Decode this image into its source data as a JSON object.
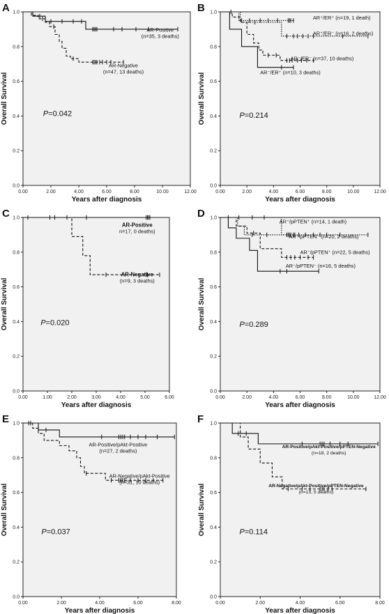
{
  "chart_data": [
    {
      "panel": "A",
      "type": "line",
      "xlabel": "Years after diagnosis",
      "ylabel": "Overall Survival",
      "xlim": [
        0,
        12
      ],
      "ylim": [
        0,
        1
      ],
      "xticks": [
        "0.00",
        "2.00",
        "4.00",
        "6.00",
        "8.00",
        "10.00",
        "12.00"
      ],
      "yticks": [
        "0.0",
        "0.2",
        "0.4",
        "0.6",
        "0.8",
        "1.0"
      ],
      "p_value": "P=0.042",
      "series": [
        {
          "name": "AR-Positive",
          "count": "(n=35, 3 deaths)",
          "style": "solid",
          "steps": [
            [
              0,
              1.0
            ],
            [
              0.7,
              0.975
            ],
            [
              1.6,
              0.945
            ],
            [
              4.5,
              0.9
            ],
            [
              11.1,
              0.9
            ]
          ],
          "censored": [
            1.2,
            2.0,
            2.8,
            3.6,
            4.2,
            5.0,
            5.1,
            5.2,
            5.3,
            6.5,
            7.1,
            8.1,
            9.0,
            11.1
          ]
        },
        {
          "name": "AR-Negative",
          "count": "(n=47, 13 deaths)",
          "style": "dashed",
          "steps": [
            [
              0,
              1.0
            ],
            [
              0.6,
              0.98
            ],
            [
              1.1,
              0.96
            ],
            [
              1.6,
              0.94
            ],
            [
              1.9,
              0.915
            ],
            [
              2.3,
              0.87
            ],
            [
              2.6,
              0.83
            ],
            [
              2.8,
              0.79
            ],
            [
              3.1,
              0.745
            ],
            [
              3.4,
              0.73
            ],
            [
              4.0,
              0.71
            ],
            [
              7.2,
              0.71
            ]
          ],
          "censored": [
            1.4,
            2.2,
            3.6,
            5.0,
            5.1,
            5.2,
            5.3,
            5.5,
            5.7,
            6.0,
            6.3,
            7.2
          ]
        }
      ]
    },
    {
      "panel": "B",
      "type": "line",
      "xlabel": "Years after diagnosis",
      "ylabel": "Overall Survival",
      "xlim": [
        0,
        12
      ],
      "ylim": [
        0,
        1
      ],
      "xticks": [
        "0.00",
        "2.00",
        "4.00",
        "6.00",
        "8.00",
        "10.00",
        "12.00"
      ],
      "yticks": [
        "0.0",
        "0.2",
        "0.4",
        "0.6",
        "0.8",
        "1.0"
      ],
      "p_value": "P=0.214",
      "series": [
        {
          "name": "AR⁺/ER⁺",
          "count": "(n=19, 1 death)",
          "style": "dotted",
          "steps": [
            [
              0,
              1.0
            ],
            [
              1.4,
              0.95
            ],
            [
              5.5,
              0.95
            ]
          ],
          "censored": [
            0.8,
            1.6,
            2.2,
            3.0,
            3.6,
            4.3,
            5.1,
            5.2,
            5.3,
            5.5
          ]
        },
        {
          "name": "AR⁺/ER⁻",
          "count": "(n=16, 2 deaths)",
          "style": "dotted",
          "steps": [
            [
              0,
              1.0
            ],
            [
              1.5,
              0.94
            ],
            [
              4.6,
              0.86
            ],
            [
              11.1,
              0.86
            ]
          ],
          "censored": [
            2.6,
            5.0,
            5.5,
            5.8,
            6.2,
            6.6,
            7.0,
            9.2,
            11.1
          ]
        },
        {
          "name": "AR⁻/ER⁻",
          "count": "(n=37, 10 deaths)",
          "style": "dashed",
          "steps": [
            [
              0,
              1.0
            ],
            [
              0.9,
              0.97
            ],
            [
              1.5,
              0.94
            ],
            [
              2.0,
              0.87
            ],
            [
              2.5,
              0.82
            ],
            [
              2.9,
              0.78
            ],
            [
              3.2,
              0.75
            ],
            [
              4.5,
              0.72
            ],
            [
              7.0,
              0.72
            ]
          ],
          "censored": [
            3.6,
            4.2,
            5.0,
            5.2,
            5.4,
            5.8,
            6.1,
            6.5,
            7.0
          ]
        },
        {
          "name": "AR⁻/ER⁺",
          "count": "(n=10, 3 deaths)",
          "style": "solid",
          "steps": [
            [
              0,
              1.0
            ],
            [
              0.7,
              0.9
            ],
            [
              1.6,
              0.8
            ],
            [
              2.8,
              0.68
            ],
            [
              5.5,
              0.68
            ]
          ],
          "censored": [
            4.6,
            5.5
          ]
        }
      ]
    },
    {
      "panel": "C",
      "type": "line",
      "xlabel": "Years after diagnosis",
      "ylabel": "Overall Survival",
      "xlim": [
        0,
        6
      ],
      "ylim": [
        0,
        1
      ],
      "xticks": [
        "0.00",
        "1.00",
        "2.00",
        "3.00",
        "4.00",
        "5.00",
        "6.00"
      ],
      "yticks": [
        "0.0",
        "0.2",
        "0.4",
        "0.6",
        "0.8",
        "1.0"
      ],
      "p_value": "P=0.020",
      "series": [
        {
          "name": "AR-Positive",
          "count": "n=17, 0 deaths)",
          "style": "solid",
          "steps": [
            [
              0,
              1.0
            ],
            [
              5.2,
              1.0
            ]
          ],
          "censored": [
            0.2,
            1.1,
            1.8,
            2.6,
            5.05,
            5.1,
            5.15,
            5.2
          ]
        },
        {
          "name": "AR-Negative",
          "count": "(n=9, 3 deaths)",
          "style": "dashed",
          "steps": [
            [
              0,
              1.0
            ],
            [
              2.0,
              0.89
            ],
            [
              2.45,
              0.78
            ],
            [
              2.75,
              0.67
            ],
            [
              5.6,
              0.67
            ]
          ],
          "censored": [
            1.3,
            3.4,
            5.05,
            5.1,
            5.6
          ]
        }
      ]
    },
    {
      "panel": "D",
      "type": "line",
      "xlabel": "Years after diagnosis",
      "ylabel": "Overall Survival",
      "xlim": [
        0,
        12
      ],
      "ylim": [
        0,
        1
      ],
      "xticks": [
        "0.00",
        "2.00",
        "4.00",
        "6.00",
        "8.00",
        "10.00",
        "12.00"
      ],
      "yticks": [
        "0.0",
        "0.2",
        "0.4",
        "0.6",
        "0.8",
        "1.0"
      ],
      "p_value": "P=0.289",
      "series": [
        {
          "name": "AR⁺/pPTEN⁺",
          "count": "(n=14, 1 death)",
          "style": "dotted",
          "steps": [
            [
              0,
              1.0
            ],
            [
              4.6,
              0.9
            ],
            [
              5.6,
              0.9
            ]
          ],
          "censored": [
            0.6,
            1.4,
            2.4,
            3.3,
            5.1,
            5.3,
            5.6
          ]
        },
        {
          "name": "AR⁺/pPTEN⁻",
          "count": "(n=20, 2 deaths)",
          "style": "dotted",
          "steps": [
            [
              0,
              1.0
            ],
            [
              1.3,
              0.95
            ],
            [
              1.8,
              0.9
            ],
            [
              11.1,
              0.9
            ]
          ],
          "censored": [
            2.4,
            3.5,
            5.0,
            5.2,
            5.5,
            5.9,
            6.4,
            7.0,
            7.5,
            8.0,
            9.0,
            11.1
          ]
        },
        {
          "name": "AR⁻/pPTEN⁺",
          "count": "(n=22, 5 deaths)",
          "style": "dashed",
          "steps": [
            [
              0,
              1.0
            ],
            [
              1.2,
              0.95
            ],
            [
              2.0,
              0.91
            ],
            [
              3.0,
              0.82
            ],
            [
              4.6,
              0.77
            ],
            [
              7.0,
              0.77
            ]
          ],
          "censored": [
            2.5,
            5.0,
            5.3,
            5.6,
            6.0,
            6.6,
            7.0
          ]
        },
        {
          "name": "AR⁻/pPTEN⁻",
          "count": "(n=16, 5 deaths)",
          "style": "solid",
          "steps": [
            [
              0,
              1.0
            ],
            [
              0.6,
              0.94
            ],
            [
              1.2,
              0.88
            ],
            [
              2.2,
              0.81
            ],
            [
              2.8,
              0.69
            ],
            [
              7.4,
              0.69
            ]
          ],
          "censored": [
            4.5,
            5.0,
            7.4
          ]
        }
      ]
    },
    {
      "panel": "E",
      "type": "line",
      "xlabel": "Years after diagnosis",
      "ylabel": "Overall Survival",
      "xlim": [
        0,
        8
      ],
      "ylim": [
        0,
        1
      ],
      "xticks": [
        "0.00",
        "2.00",
        "4.00",
        "6.00",
        "8.00"
      ],
      "yticks": [
        "0.0",
        "0.2",
        "0.4",
        "0.6",
        "0.8",
        "1.0"
      ],
      "p_value": "P=0.037",
      "series": [
        {
          "name": "AR-Positive/pAkt-Positive",
          "count": "(n=27, 2 deaths)",
          "style": "solid",
          "steps": [
            [
              0,
              1.0
            ],
            [
              0.8,
              0.96
            ],
            [
              1.9,
              0.92
            ],
            [
              7.9,
              0.92
            ]
          ],
          "censored": [
            0.4,
            1.2,
            4.1,
            5.0,
            5.1,
            5.2,
            5.3,
            5.6,
            6.0,
            6.4,
            7.0,
            7.9
          ]
        },
        {
          "name": "AR-Negative/pAkt-Positive",
          "count": "(n=31, 10 deaths)",
          "style": "dashed",
          "steps": [
            [
              0,
              1.0
            ],
            [
              0.5,
              0.97
            ],
            [
              0.8,
              0.94
            ],
            [
              1.1,
              0.9
            ],
            [
              1.9,
              0.87
            ],
            [
              2.4,
              0.84
            ],
            [
              2.8,
              0.8
            ],
            [
              3.0,
              0.75
            ],
            [
              3.2,
              0.71
            ],
            [
              4.3,
              0.67
            ],
            [
              7.3,
              0.67
            ]
          ],
          "censored": [
            0.3,
            3.3,
            4.6,
            5.0,
            5.1,
            5.2,
            5.3,
            5.6,
            6.0,
            6.4,
            6.8,
            7.3
          ]
        }
      ]
    },
    {
      "panel": "F",
      "type": "line",
      "xlabel": "Years after diagnosis",
      "ylabel": "Overall Survival",
      "xlim": [
        0,
        8
      ],
      "ylim": [
        0,
        1
      ],
      "xticks": [
        "0.00",
        "2.00",
        "4.00",
        "6.00",
        "8.00"
      ],
      "yticks": [
        "0.0",
        "0.2",
        "0.4",
        "0.6",
        "0.8",
        "1.0"
      ],
      "p_value": "P=0.114",
      "series": [
        {
          "name": "AR-Positive/pAkt-Positive/pPTEN-Negative",
          "count": "(n=18, 2 deaths)",
          "style": "solid",
          "steps": [
            [
              0,
              1.0
            ],
            [
              0.6,
              0.94
            ],
            [
              1.9,
              0.88
            ],
            [
              7.9,
              0.88
            ]
          ],
          "censored": [
            0.9,
            1.3,
            4.1,
            5.0,
            5.1,
            5.2,
            5.5,
            6.0,
            6.4,
            7.9
          ]
        },
        {
          "name": "AR-Negative/pAkt-Positive/pPTEN-Negative",
          "count": "(n=13, 5 deaths)",
          "style": "dashed",
          "steps": [
            [
              0,
              1.0
            ],
            [
              1.0,
              0.92
            ],
            [
              1.4,
              0.85
            ],
            [
              2.0,
              0.77
            ],
            [
              2.6,
              0.69
            ],
            [
              3.1,
              0.62
            ],
            [
              7.3,
              0.62
            ]
          ],
          "censored": [
            3.4,
            4.1,
            4.5,
            5.0,
            5.1,
            5.2,
            5.4,
            5.6,
            7.3
          ]
        }
      ]
    }
  ]
}
